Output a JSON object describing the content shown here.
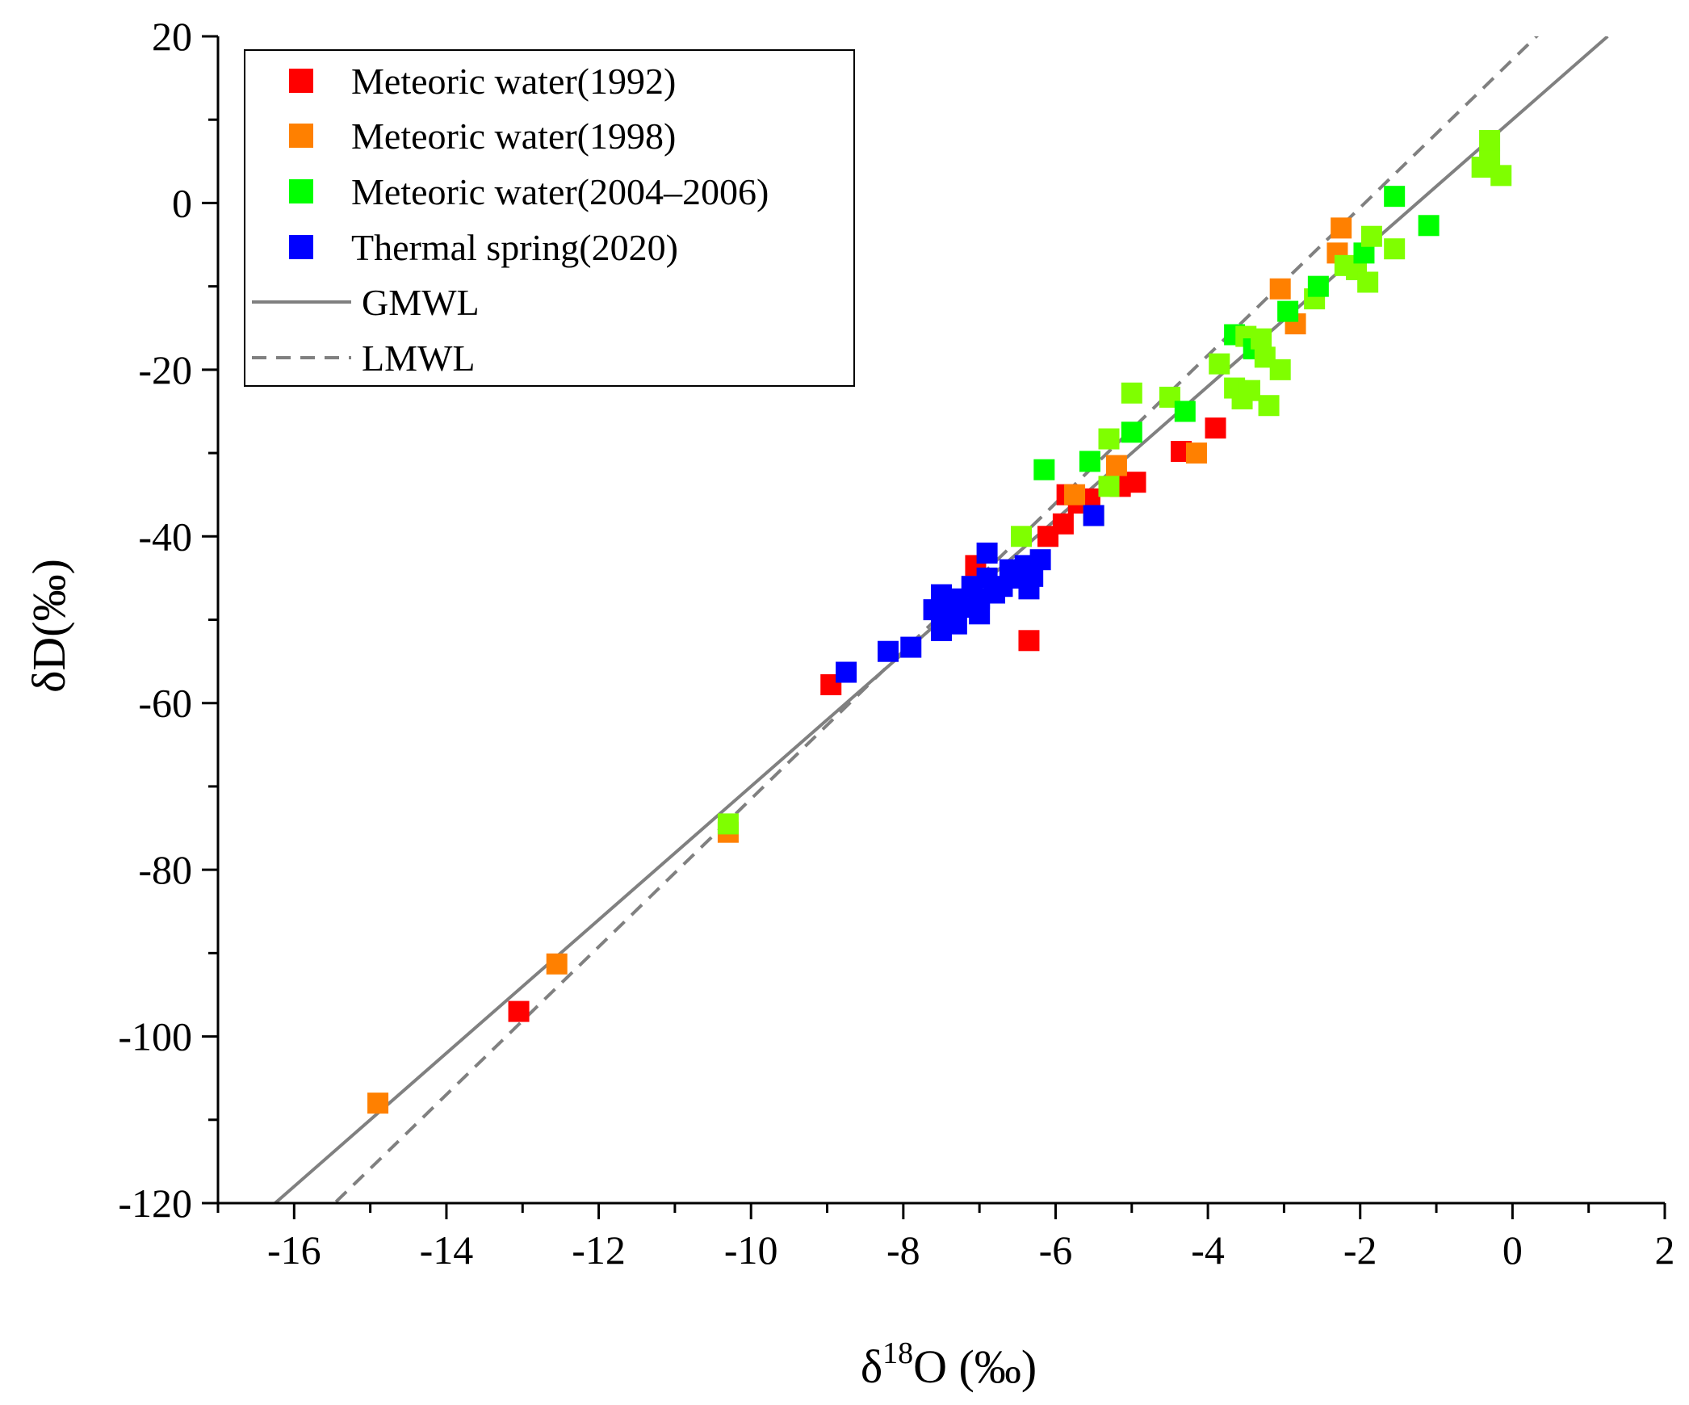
{
  "chart_data": {
    "type": "scatter",
    "title": "",
    "xlabel": {
      "main": "δ",
      "sup": "18",
      "rest": "O (‰)"
    },
    "ylabel": "δD(‰)",
    "xlim": [
      -17,
      2
    ],
    "ylim": [
      -120,
      20
    ],
    "x_ticks": [
      -16,
      -14,
      -12,
      -10,
      -8,
      -6,
      -4,
      -2,
      0,
      2
    ],
    "x_tick_labels": [
      "-16",
      "-14",
      "-12",
      "-10",
      "-8",
      "-6",
      "-4",
      "-2",
      "0",
      "2"
    ],
    "y_ticks": [
      -120,
      -100,
      -80,
      -60,
      -40,
      -20,
      0,
      20
    ],
    "y_tick_labels": [
      "-120",
      "-100",
      "-80",
      "-60",
      "-40",
      "-20",
      "0",
      "20"
    ],
    "legend_position": "top-left",
    "series": [
      {
        "name": "Meteoric water(1992)",
        "color": "#ff0000",
        "points": [
          [
            -13.05,
            -97
          ],
          [
            -8.95,
            -57.8
          ],
          [
            -6.35,
            -52.5
          ],
          [
            -7.05,
            -43.5
          ],
          [
            -6.1,
            -40
          ],
          [
            -5.9,
            -38.5
          ],
          [
            -5.85,
            -35
          ],
          [
            -5.7,
            -36
          ],
          [
            -5.55,
            -35.5
          ],
          [
            -5.15,
            -34
          ],
          [
            -4.95,
            -33.5
          ],
          [
            -4.35,
            -29.8
          ],
          [
            -3.9,
            -27
          ]
        ]
      },
      {
        "name": "Meteoric water(1998)",
        "color": "#ff8000",
        "points": [
          [
            -14.9,
            -108
          ],
          [
            -12.55,
            -91.3
          ],
          [
            -10.3,
            -75.5
          ],
          [
            -5.75,
            -35
          ],
          [
            -5.2,
            -31.5
          ],
          [
            -4.15,
            -30
          ],
          [
            -3.05,
            -10.3
          ],
          [
            -2.85,
            -14.5
          ],
          [
            -2.3,
            -6
          ],
          [
            -2.25,
            -3
          ]
        ]
      },
      {
        "name": "Meteoric water(2004–2006)",
        "color": "#00ff00",
        "light_color": "#7fff00",
        "points": [
          [
            -10.3,
            -74.5
          ],
          [
            -6.45,
            -40
          ],
          [
            -6.15,
            -32
          ],
          [
            -5.55,
            -31
          ],
          [
            -5.5,
            -37.5
          ],
          [
            -5.3,
            -28.3
          ],
          [
            -5.3,
            -34
          ],
          [
            -5,
            -27.5
          ],
          [
            -5,
            -22.8
          ],
          [
            -4.5,
            -23.3
          ],
          [
            -4.3,
            -25
          ],
          [
            -3.85,
            -19.3
          ],
          [
            -3.65,
            -15.8
          ],
          [
            -3.65,
            -22.2
          ],
          [
            -3.55,
            -23.5
          ],
          [
            -3.5,
            -16
          ],
          [
            -3.45,
            -22.5
          ],
          [
            -3.4,
            -17.5
          ],
          [
            -3.3,
            -16.3
          ],
          [
            -3.25,
            -18.5
          ],
          [
            -3.2,
            -24.3
          ],
          [
            -3.05,
            -20
          ],
          [
            -2.95,
            -13
          ],
          [
            -2.6,
            -11.5
          ],
          [
            -2.55,
            -10
          ],
          [
            -2.2,
            -7.5
          ],
          [
            -2.05,
            -8
          ],
          [
            -1.95,
            -6
          ],
          [
            -1.9,
            -9.5
          ],
          [
            -1.85,
            -4
          ],
          [
            -1.55,
            -5.5
          ],
          [
            -1.55,
            0.8
          ],
          [
            -1.1,
            -2.7
          ],
          [
            -0.4,
            4.3
          ],
          [
            -0.3,
            7.5
          ],
          [
            -0.3,
            5
          ],
          [
            -0.15,
            3.3
          ]
        ]
      },
      {
        "name": "Thermal spring(2020)",
        "color": "#0000ff",
        "points": [
          [
            -8.75,
            -56.3
          ],
          [
            -8.2,
            -53.8
          ],
          [
            -7.9,
            -53.3
          ],
          [
            -7.6,
            -48.8
          ],
          [
            -7.5,
            -51.3
          ],
          [
            -7.5,
            -47
          ],
          [
            -7.4,
            -49
          ],
          [
            -7.3,
            -50.5
          ],
          [
            -7.3,
            -47.5
          ],
          [
            -7.2,
            -48.5
          ],
          [
            -7.1,
            -46
          ],
          [
            -7,
            -49.3
          ],
          [
            -7,
            -47.5
          ],
          [
            -6.9,
            -45
          ],
          [
            -6.9,
            -42
          ],
          [
            -6.8,
            -46.8
          ],
          [
            -6.7,
            -46
          ],
          [
            -6.6,
            -44
          ],
          [
            -6.5,
            -45
          ],
          [
            -6.4,
            -43.5
          ],
          [
            -6.35,
            -46.3
          ],
          [
            -6.3,
            -44.8
          ],
          [
            -6.2,
            -42.8
          ],
          [
            -5.5,
            -37.5
          ]
        ]
      }
    ],
    "lines": [
      {
        "name": "GMWL",
        "style": "solid",
        "color": "#808080",
        "slope": 8,
        "intercept": 10,
        "x_range": [
          -16.25,
          1.25
        ]
      },
      {
        "name": "LMWL",
        "style": "dashed",
        "color": "#808080",
        "slope": 8.87,
        "intercept": 17.2,
        "x_range": [
          -15.45,
          0.4
        ]
      }
    ]
  }
}
